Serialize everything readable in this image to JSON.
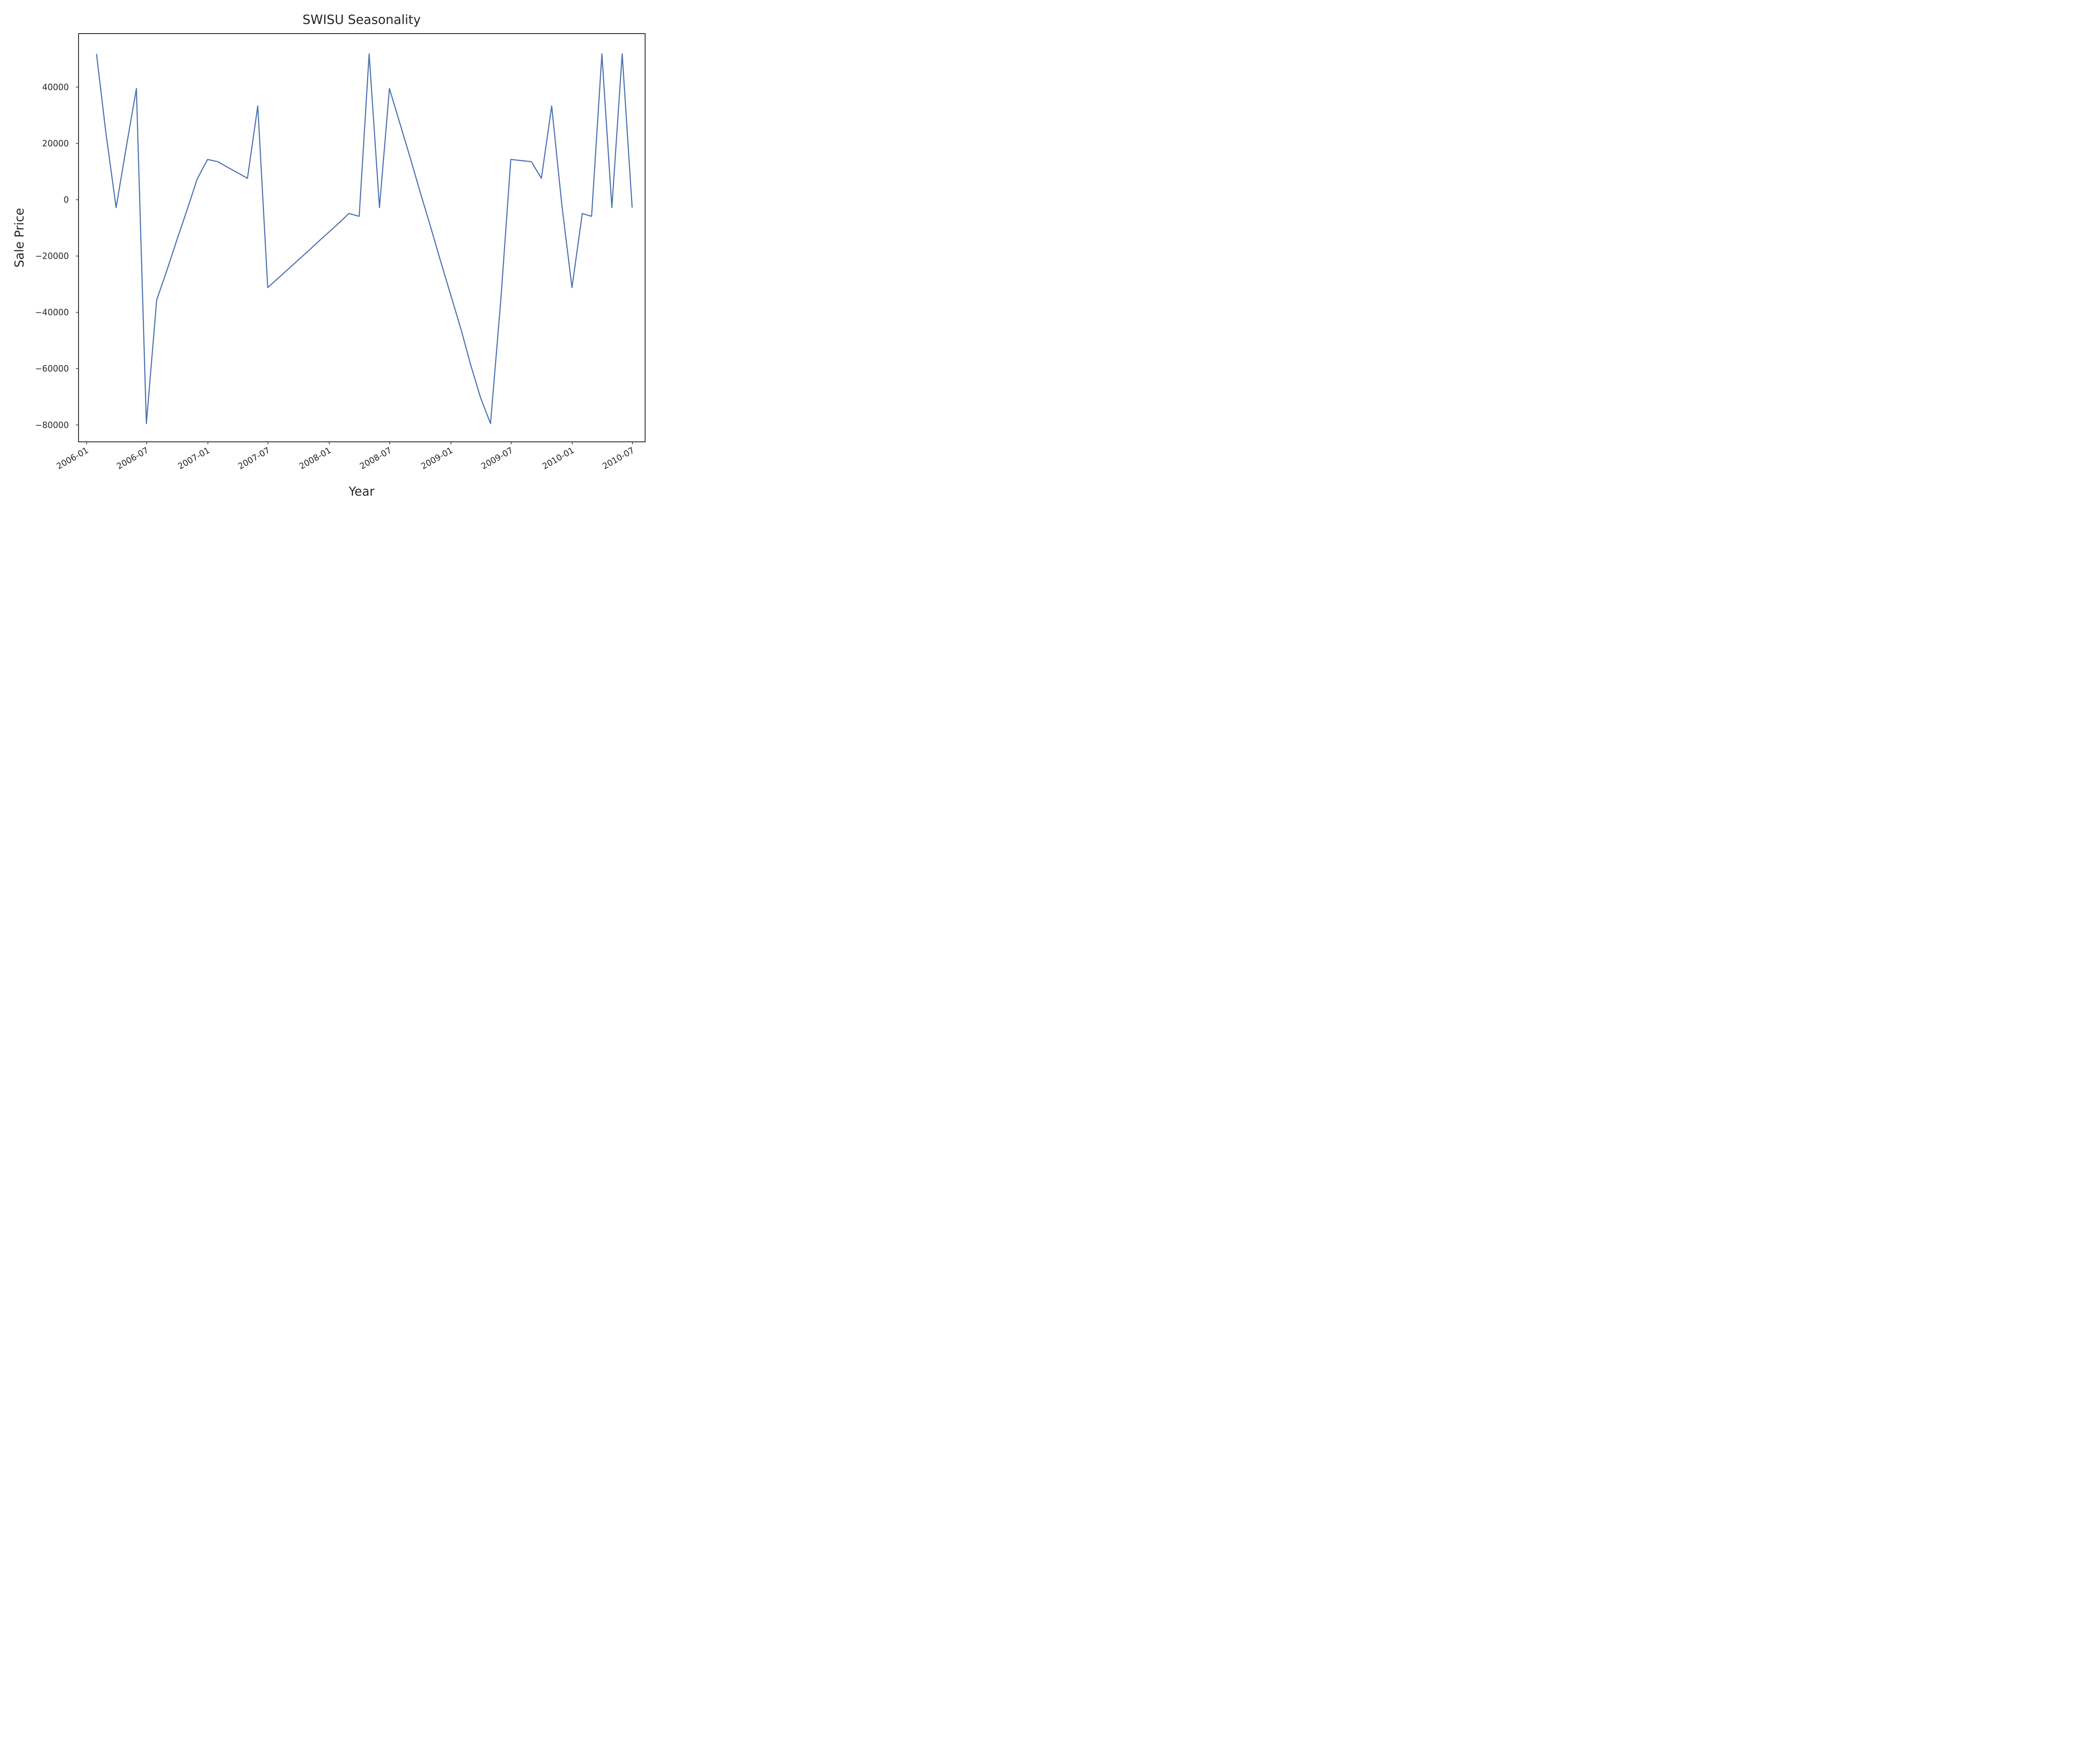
{
  "chart_data": {
    "type": "line",
    "title": "SWISU Seasonality",
    "xlabel": "Year",
    "ylabel": "Sale Price",
    "x_ticks": [
      "2006-01",
      "2006-07",
      "2007-01",
      "2007-07",
      "2008-01",
      "2008-07",
      "2009-01",
      "2009-07",
      "2010-01",
      "2010-07"
    ],
    "y_ticks": [
      40000,
      20000,
      0,
      -20000,
      -40000,
      -60000,
      -80000
    ],
    "y_tick_labels": [
      "40000",
      "20000",
      "0",
      "−20000",
      "−40000",
      "−60000",
      "−80000"
    ],
    "xlim": [
      "2005-12-08",
      "2010-08-08"
    ],
    "ylim": [
      -86000,
      59000
    ],
    "grid": false,
    "legend": "none",
    "line_color": "#4c72b0",
    "series": [
      {
        "x": [
          "2006-01-31",
          "2006-02-28",
          "2006-03-31",
          "2006-04-30",
          "2006-05-31",
          "2006-06-30",
          "2006-07-31",
          "2006-08-31",
          "2006-09-30",
          "2006-10-31",
          "2006-11-30",
          "2006-12-31",
          "2007-01-31",
          "2007-02-28",
          "2007-03-31",
          "2007-04-30",
          "2007-05-31",
          "2007-06-30",
          "2007-07-31",
          "2007-08-31",
          "2007-09-30",
          "2007-10-31",
          "2007-11-30",
          "2007-12-31",
          "2008-01-31",
          "2008-02-29",
          "2008-03-31",
          "2008-04-30",
          "2008-05-31",
          "2008-06-30",
          "2008-07-31",
          "2008-08-31",
          "2008-09-30",
          "2008-10-31",
          "2008-11-30",
          "2008-12-31",
          "2009-01-31",
          "2009-02-28",
          "2009-03-31",
          "2009-04-30",
          "2009-05-31",
          "2009-06-30",
          "2009-07-31",
          "2009-08-31",
          "2009-09-30",
          "2009-10-31",
          "2009-11-30",
          "2009-12-31",
          "2010-01-31",
          "2010-02-28",
          "2010-03-31",
          "2010-04-30",
          "2010-05-31",
          "2010-06-30"
        ],
        "values": [
          51800,
          24000,
          -2800,
          18300,
          39500,
          -79500,
          -35600,
          -25000,
          -14200,
          -3400,
          7400,
          14300,
          13500,
          11600,
          9600,
          7600,
          33300,
          -31200,
          -27900,
          -24600,
          -21400,
          -18100,
          -14800,
          -11500,
          -8200,
          -4900,
          -5900,
          51800,
          -2800,
          39500,
          27300,
          15100,
          2900,
          -9300,
          -21500,
          -33700,
          -45900,
          -58100,
          -70300,
          -79500,
          -35600,
          14300,
          13900,
          13500,
          7600,
          33300,
          -1300,
          -31200,
          -4900,
          -5900,
          51800,
          -2800,
          51800,
          -2800
        ]
      }
    ]
  }
}
